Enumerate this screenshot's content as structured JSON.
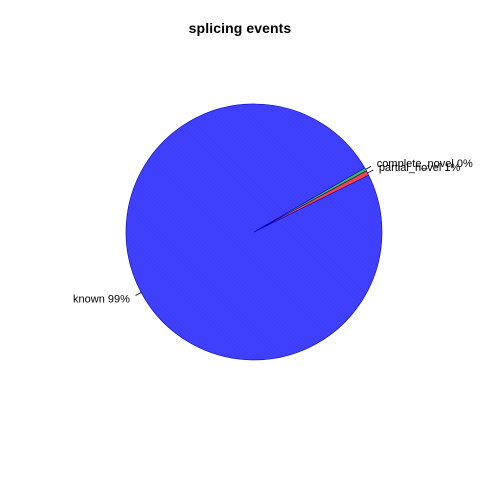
{
  "chart_data": {
    "type": "pie",
    "title": "splicing events",
    "slices": [
      {
        "label": "known",
        "percent_label": "99%",
        "value": 99.0,
        "color": "#4040ff"
      },
      {
        "label": "partial_novel",
        "percent_label": "1%",
        "value": 0.6,
        "color": "#ff4040"
      },
      {
        "label": "complete_novel",
        "percent_label": "0%",
        "value": 0.4,
        "color": "#40c040"
      }
    ],
    "start_angle_deg": 30,
    "direction": "counterclockwise",
    "border_color": "#0000c0"
  }
}
